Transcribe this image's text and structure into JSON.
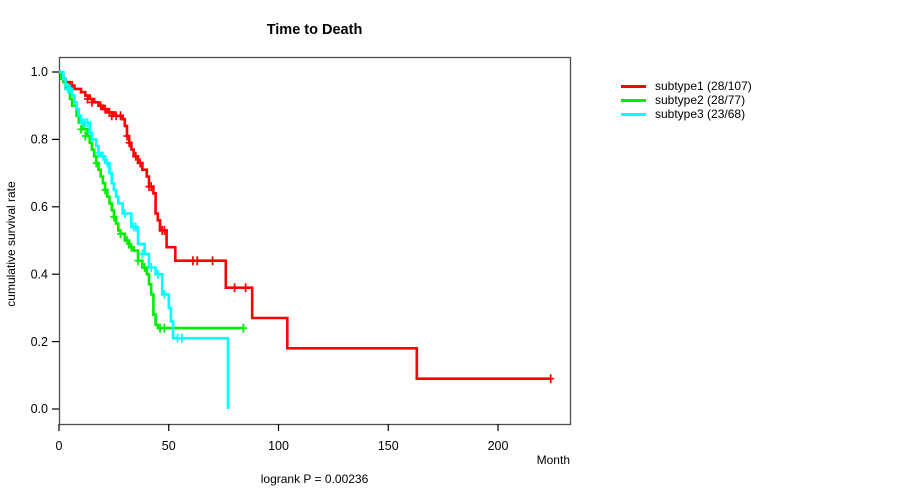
{
  "chart_data": {
    "type": "line",
    "variant": "kaplan-meier-step",
    "title": "Time to Death",
    "xlabel": "Month",
    "ylabel": "cumulative survival rate",
    "annotation": "logrank P = 0.00236",
    "xlim": [
      0,
      233
    ],
    "ylim": [
      0.0,
      1.0
    ],
    "x_ticks": [
      "0",
      "50",
      "100",
      "150",
      "200"
    ],
    "y_ticks": [
      "0.0",
      "0.2",
      "0.4",
      "0.6",
      "0.8",
      "1.0"
    ],
    "grid": false,
    "legend_position": "right-outside",
    "series": [
      {
        "name": "subtype1 (28/107)",
        "color": "#ff0000",
        "end_month": 224,
        "steps": [
          [
            0,
            1.0
          ],
          [
            1,
            0.99
          ],
          [
            2,
            0.98
          ],
          [
            3,
            0.97
          ],
          [
            5,
            0.96
          ],
          [
            7,
            0.95
          ],
          [
            10,
            0.94
          ],
          [
            12,
            0.93
          ],
          [
            14,
            0.92
          ],
          [
            16,
            0.91
          ],
          [
            18,
            0.9
          ],
          [
            20,
            0.89
          ],
          [
            22,
            0.88
          ],
          [
            25,
            0.87
          ],
          [
            29,
            0.86
          ],
          [
            30,
            0.84
          ],
          [
            31,
            0.81
          ],
          [
            32,
            0.79
          ],
          [
            33,
            0.77
          ],
          [
            34,
            0.75
          ],
          [
            36,
            0.73
          ],
          [
            38,
            0.71
          ],
          [
            40,
            0.69
          ],
          [
            41,
            0.66
          ],
          [
            43,
            0.64
          ],
          [
            44,
            0.58
          ],
          [
            45,
            0.56
          ],
          [
            46,
            0.53
          ],
          [
            49,
            0.48
          ],
          [
            53,
            0.44
          ],
          [
            76,
            0.36
          ],
          [
            88,
            0.27
          ],
          [
            104,
            0.18
          ],
          [
            163,
            0.09
          ]
        ],
        "censors": [
          [
            3,
            0.97
          ],
          [
            5,
            0.96
          ],
          [
            6,
            0.96
          ],
          [
            13,
            0.92
          ],
          [
            15,
            0.91
          ],
          [
            19,
            0.9
          ],
          [
            21,
            0.89
          ],
          [
            23,
            0.88
          ],
          [
            24,
            0.87
          ],
          [
            26,
            0.87
          ],
          [
            28,
            0.87
          ],
          [
            31,
            0.81
          ],
          [
            32,
            0.79
          ],
          [
            35,
            0.75
          ],
          [
            37,
            0.73
          ],
          [
            41,
            0.66
          ],
          [
            42,
            0.66
          ],
          [
            47,
            0.53
          ],
          [
            48,
            0.53
          ],
          [
            61,
            0.44
          ],
          [
            63,
            0.44
          ],
          [
            70,
            0.44
          ],
          [
            80,
            0.36
          ],
          [
            85,
            0.36
          ],
          [
            224,
            0.09
          ]
        ]
      },
      {
        "name": "subtype2 (28/77)",
        "color": "#00ee00",
        "end_month": 84,
        "steps": [
          [
            0,
            1.0
          ],
          [
            1,
            0.98
          ],
          [
            2,
            0.97
          ],
          [
            3,
            0.95
          ],
          [
            5,
            0.92
          ],
          [
            6,
            0.9
          ],
          [
            8,
            0.87
          ],
          [
            9,
            0.85
          ],
          [
            11,
            0.83
          ],
          [
            13,
            0.81
          ],
          [
            14,
            0.79
          ],
          [
            15,
            0.77
          ],
          [
            16,
            0.75
          ],
          [
            17,
            0.73
          ],
          [
            18,
            0.71
          ],
          [
            19,
            0.69
          ],
          [
            20,
            0.67
          ],
          [
            21,
            0.65
          ],
          [
            22,
            0.63
          ],
          [
            23,
            0.61
          ],
          [
            24,
            0.59
          ],
          [
            25,
            0.57
          ],
          [
            26,
            0.55
          ],
          [
            27,
            0.53
          ],
          [
            28,
            0.52
          ],
          [
            30,
            0.5
          ],
          [
            32,
            0.48
          ],
          [
            34,
            0.47
          ],
          [
            36,
            0.44
          ],
          [
            38,
            0.42
          ],
          [
            40,
            0.4
          ],
          [
            41,
            0.37
          ],
          [
            42,
            0.34
          ],
          [
            43,
            0.28
          ],
          [
            44,
            0.25
          ],
          [
            45,
            0.24
          ]
        ],
        "censors": [
          [
            4,
            0.95
          ],
          [
            10,
            0.83
          ],
          [
            12,
            0.81
          ],
          [
            17,
            0.73
          ],
          [
            21,
            0.65
          ],
          [
            25,
            0.57
          ],
          [
            28,
            0.52
          ],
          [
            31,
            0.5
          ],
          [
            33,
            0.48
          ],
          [
            36,
            0.44
          ],
          [
            39,
            0.42
          ],
          [
            46,
            0.24
          ],
          [
            48,
            0.24
          ],
          [
            84,
            0.24
          ]
        ]
      },
      {
        "name": "subtype3 (23/68)",
        "color": "#00ffff",
        "end_month": 77,
        "steps": [
          [
            0,
            1.0
          ],
          [
            2,
            0.98
          ],
          [
            3,
            0.96
          ],
          [
            4,
            0.95
          ],
          [
            6,
            0.93
          ],
          [
            7,
            0.91
          ],
          [
            8,
            0.89
          ],
          [
            9,
            0.87
          ],
          [
            10,
            0.85
          ],
          [
            14,
            0.82
          ],
          [
            15,
            0.8
          ],
          [
            17,
            0.78
          ],
          [
            18,
            0.76
          ],
          [
            19,
            0.75
          ],
          [
            21,
            0.73
          ],
          [
            23,
            0.7
          ],
          [
            24,
            0.67
          ],
          [
            25,
            0.65
          ],
          [
            26,
            0.63
          ],
          [
            27,
            0.61
          ],
          [
            29,
            0.58
          ],
          [
            33,
            0.54
          ],
          [
            36,
            0.49
          ],
          [
            39,
            0.46
          ],
          [
            41,
            0.42
          ],
          [
            44,
            0.4
          ],
          [
            47,
            0.34
          ],
          [
            50,
            0.3
          ],
          [
            51,
            0.26
          ],
          [
            52,
            0.21
          ],
          [
            77,
            0.0
          ]
        ],
        "censors": [
          [
            4,
            0.95
          ],
          [
            5,
            0.95
          ],
          [
            11,
            0.85
          ],
          [
            12,
            0.85
          ],
          [
            13,
            0.85
          ],
          [
            18,
            0.76
          ],
          [
            20,
            0.75
          ],
          [
            22,
            0.73
          ],
          [
            30,
            0.58
          ],
          [
            34,
            0.54
          ],
          [
            35,
            0.54
          ],
          [
            38,
            0.46
          ],
          [
            42,
            0.42
          ],
          [
            45,
            0.4
          ],
          [
            48,
            0.34
          ],
          [
            54,
            0.21
          ],
          [
            56,
            0.21
          ]
        ]
      }
    ],
    "colors": {
      "axis": "#000000",
      "box_border": "#4d4d4d",
      "background": "#ffffff"
    }
  }
}
